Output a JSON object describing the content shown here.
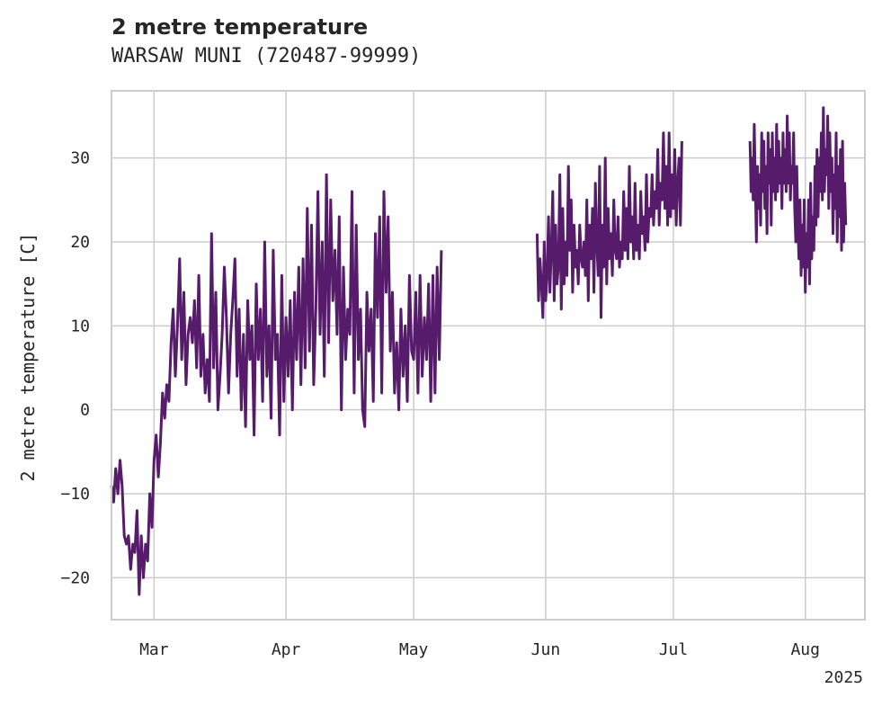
{
  "chart_data": {
    "type": "line",
    "title": "2 metre temperature",
    "subtitle": "WARSAW MUNI (720487-99999)",
    "ylabel": "2 metre temperature [C]",
    "xlabel": "",
    "year_label": "2025",
    "ylim": [
      -25,
      38
    ],
    "yticks": [
      -20,
      -10,
      0,
      10,
      20,
      30
    ],
    "xlim": [
      "2025-02-19",
      "2025-08-15"
    ],
    "xticks": [
      {
        "label": "Mar",
        "date": "2025-03-01"
      },
      {
        "label": "Apr",
        "date": "2025-04-01"
      },
      {
        "label": "May",
        "date": "2025-05-01"
      },
      {
        "label": "Jun",
        "date": "2025-06-01"
      },
      {
        "label": "Jul",
        "date": "2025-07-01"
      },
      {
        "label": "Aug",
        "date": "2025-08-01"
      }
    ],
    "grid": true,
    "line_color": "#561c6b",
    "series": [
      {
        "name": "segment-1",
        "start": "2025-02-19",
        "step_hours": 12,
        "values": [
          -9,
          -11,
          -7,
          -10,
          -6,
          -9,
          -15,
          -16,
          -15,
          -19,
          -16,
          -17,
          -12,
          -22,
          -15,
          -20,
          -16,
          -18,
          -10,
          -14,
          -6,
          -3,
          -8,
          -4,
          2,
          -1,
          3,
          1,
          8,
          12,
          4,
          10,
          18,
          6,
          14,
          3,
          9,
          11,
          8,
          13,
          5,
          16,
          4,
          9,
          2,
          6,
          1,
          21,
          5,
          14,
          0,
          4,
          9,
          17,
          11,
          2,
          9,
          13,
          18,
          4,
          12,
          0,
          9,
          -2,
          13,
          6,
          10,
          -3,
          15,
          6,
          12,
          1,
          20,
          4,
          10,
          -1,
          19,
          6,
          9,
          -3,
          16,
          1,
          11,
          4,
          13,
          0,
          14,
          6,
          17,
          3,
          18,
          5,
          24,
          7,
          22,
          3,
          12,
          26,
          9,
          20,
          4,
          28,
          8,
          25,
          13,
          19,
          9,
          23,
          0,
          17,
          6,
          12,
          9,
          26,
          2,
          22,
          6,
          12,
          0,
          -2,
          14,
          7,
          12,
          1,
          21,
          11,
          23,
          2,
          26,
          14,
          23,
          7,
          14,
          2,
          8,
          0,
          12,
          4,
          10,
          1,
          16,
          7,
          6,
          14,
          2,
          16,
          4,
          11,
          6,
          15,
          1,
          16,
          2,
          17,
          6,
          19
        ]
      },
      {
        "name": "segment-2",
        "start": "2025-05-30",
        "step_hours": 8,
        "values": [
          21,
          13,
          18,
          15,
          11,
          20,
          13,
          16,
          23,
          14,
          19,
          26,
          13,
          22,
          15,
          17,
          28,
          12,
          24,
          15,
          20,
          16,
          29,
          19,
          25,
          14,
          22,
          17,
          19,
          15,
          22,
          18,
          17,
          20,
          16,
          25,
          13,
          22,
          18,
          24,
          14,
          27,
          20,
          16,
          29,
          11,
          22,
          17,
          30,
          15,
          24,
          18,
          21,
          16,
          25,
          19,
          18,
          23,
          17,
          20,
          18,
          26,
          19,
          24,
          18,
          29,
          20,
          23,
          18,
          27,
          19,
          22,
          18,
          26,
          21,
          23,
          19,
          28,
          20,
          24,
          23,
          28,
          22,
          26,
          24,
          31,
          22,
          27,
          25,
          33,
          24,
          29,
          22,
          33,
          23,
          28,
          24,
          31,
          22,
          27,
          30,
          22,
          32
        ]
      },
      {
        "name": "segment-3",
        "start": "2025-07-19",
        "step_hours": 6,
        "values": [
          32,
          26,
          30,
          25,
          34,
          27,
          20,
          29,
          24,
          28,
          22,
          33,
          26,
          32,
          24,
          29,
          21,
          33,
          27,
          31,
          22,
          33,
          26,
          30,
          25,
          34,
          26,
          32,
          27,
          30,
          24,
          33,
          27,
          31,
          26,
          35,
          27,
          33,
          25,
          29,
          27,
          33,
          24,
          20,
          29,
          22,
          18,
          25,
          16,
          22,
          17,
          25,
          14,
          21,
          17,
          25,
          15,
          27,
          18,
          23,
          19,
          29,
          22,
          31,
          23,
          30,
          26,
          33,
          25,
          36,
          26,
          31,
          28,
          35,
          24,
          33,
          26,
          30,
          21,
          28,
          24,
          33,
          20,
          29,
          23,
          31,
          19,
          32,
          20,
          27,
          22
        ]
      }
    ]
  }
}
